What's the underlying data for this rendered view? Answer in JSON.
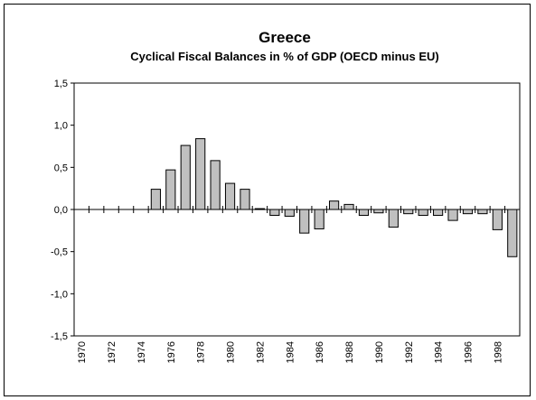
{
  "chart_data": {
    "type": "bar",
    "title": "Greece",
    "subtitle": "Cyclical Fiscal Balances in % of GDP (OECD minus EU)",
    "xlabel": "",
    "ylabel": "",
    "ylim": [
      -1.5,
      1.5
    ],
    "y_ticks": [
      "1,5",
      "1,0",
      "0,5",
      "0,0",
      "-0,5",
      "-1,0",
      "-1,5"
    ],
    "y_tick_values": [
      1.5,
      1.0,
      0.5,
      0.0,
      -0.5,
      -1.0,
      -1.5
    ],
    "x_tick_labels": [
      "1970",
      "1972",
      "1974",
      "1976",
      "1978",
      "1980",
      "1982",
      "1984",
      "1986",
      "1988",
      "1990",
      "1992",
      "1994",
      "1996",
      "1998"
    ],
    "categories": [
      "1970",
      "1971",
      "1972",
      "1973",
      "1974",
      "1975",
      "1976",
      "1977",
      "1978",
      "1979",
      "1980",
      "1981",
      "1982",
      "1983",
      "1984",
      "1985",
      "1986",
      "1987",
      "1988",
      "1989",
      "1990",
      "1991",
      "1992",
      "1993",
      "1994",
      "1995",
      "1996",
      "1997",
      "1998",
      "1999"
    ],
    "values": [
      0,
      0,
      0,
      0,
      0,
      0.24,
      0.47,
      0.76,
      0.84,
      0.58,
      0.31,
      0.24,
      0.01,
      -0.07,
      -0.08,
      -0.28,
      -0.23,
      0.1,
      0.06,
      -0.07,
      -0.04,
      -0.21,
      -0.05,
      -0.07,
      -0.07,
      -0.13,
      -0.05,
      -0.05,
      -0.24,
      -0.56
    ],
    "bar_color": "#c0c0c0",
    "grid": false,
    "legend": "none"
  }
}
